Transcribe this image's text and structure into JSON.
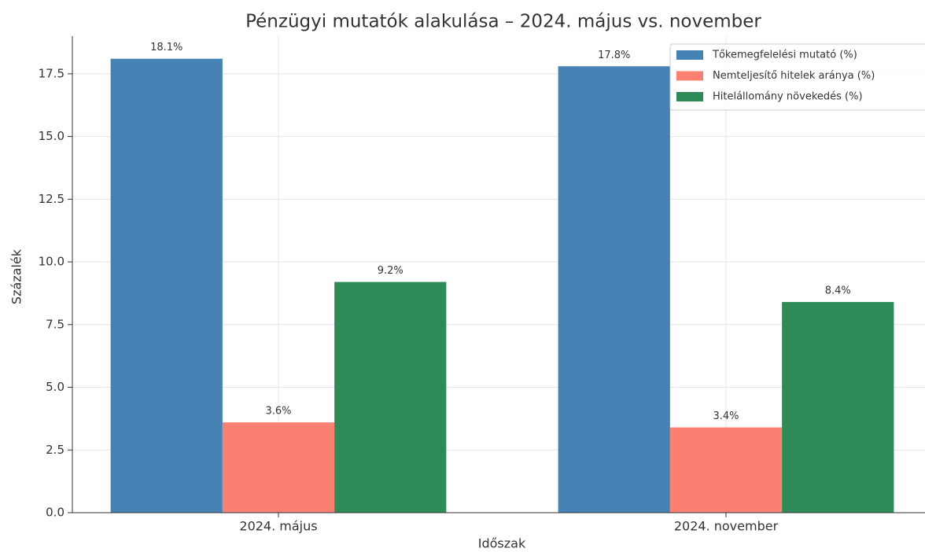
{
  "chart_data": {
    "type": "bar",
    "title": "Pénzügyi mutatók alakulása – 2024. május vs. november",
    "xlabel": "Időszak",
    "ylabel": "Százalék",
    "categories": [
      "2024. május",
      "2024. november"
    ],
    "series": [
      {
        "name": "Tőkemegfelelési mutató (%)",
        "color": "#4682b4",
        "values": [
          18.1,
          17.8
        ],
        "value_labels": [
          "18.1%",
          "17.8%"
        ]
      },
      {
        "name": "Nemteljesítő hitelek aránya (%)",
        "color": "#fa8072",
        "values": [
          3.6,
          3.4
        ],
        "value_labels": [
          "3.6%",
          "3.4%"
        ]
      },
      {
        "name": "Hitelállomány növekedés (%)",
        "color": "#2e8b57",
        "values": [
          9.2,
          8.4
        ],
        "value_labels": [
          "9.2%",
          "8.4%"
        ]
      }
    ],
    "ylim": [
      0,
      19
    ],
    "yticks": [
      {
        "value": 0,
        "label": "0.0"
      },
      {
        "value": 2.5,
        "label": "2.5"
      },
      {
        "value": 5,
        "label": "5.0"
      },
      {
        "value": 7.5,
        "label": "7.5"
      },
      {
        "value": 10,
        "label": "10.0"
      },
      {
        "value": 12.5,
        "label": "12.5"
      },
      {
        "value": 15,
        "label": "15.0"
      },
      {
        "value": 17.5,
        "label": "17.5"
      }
    ],
    "grid": true,
    "legend": "upper right"
  }
}
